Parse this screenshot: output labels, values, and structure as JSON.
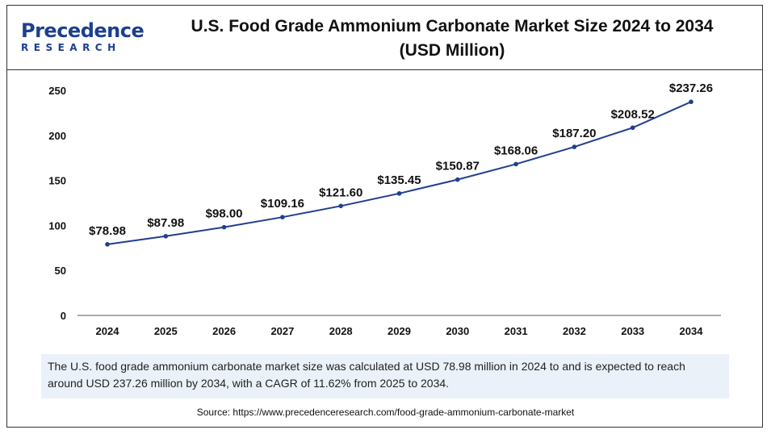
{
  "brand": {
    "name_main": "Precedence",
    "name_sub": "RESEARCH"
  },
  "header": {
    "title_line1": "U.S. Food Grade Ammonium Carbonate Market Size 2024 to 2034",
    "title_line2": "(USD Million)"
  },
  "colors": {
    "line": "#1f3f8f",
    "axis": "#555555",
    "note_bg": "#eaf1f8"
  },
  "chart_data": {
    "type": "line",
    "title": "U.S. Food Grade Ammonium Carbonate Market Size 2024 to 2034 (USD Million)",
    "categories": [
      "2024",
      "2025",
      "2026",
      "2027",
      "2028",
      "2029",
      "2030",
      "2031",
      "2032",
      "2033",
      "2034"
    ],
    "series": [
      {
        "values": [
          78.98,
          87.98,
          98.0,
          109.16,
          121.6,
          135.45,
          150.87,
          168.06,
          187.2,
          208.52,
          237.26
        ]
      }
    ],
    "data_labels": [
      "$78.98",
      "$87.98",
      "$98.00",
      "$109.16",
      "$121.60",
      "$135.45",
      "$150.87",
      "$168.06",
      "$187.20",
      "$208.52",
      "$237.26"
    ],
    "yticks": [
      "0",
      "50",
      "100",
      "150",
      "200",
      "250"
    ],
    "ylim": [
      0,
      250
    ],
    "grid": false,
    "legend": "none"
  },
  "note": "The U.S. food grade ammonium carbonate market size was calculated at USD 78.98 million in 2024 to and is expected to reach around USD 237.26 million by 2034, with a CAGR of 11.62% from 2025 to 2034.",
  "source": "Source: https://www.precedenceresearch.com/food-grade-ammonium-carbonate-market"
}
